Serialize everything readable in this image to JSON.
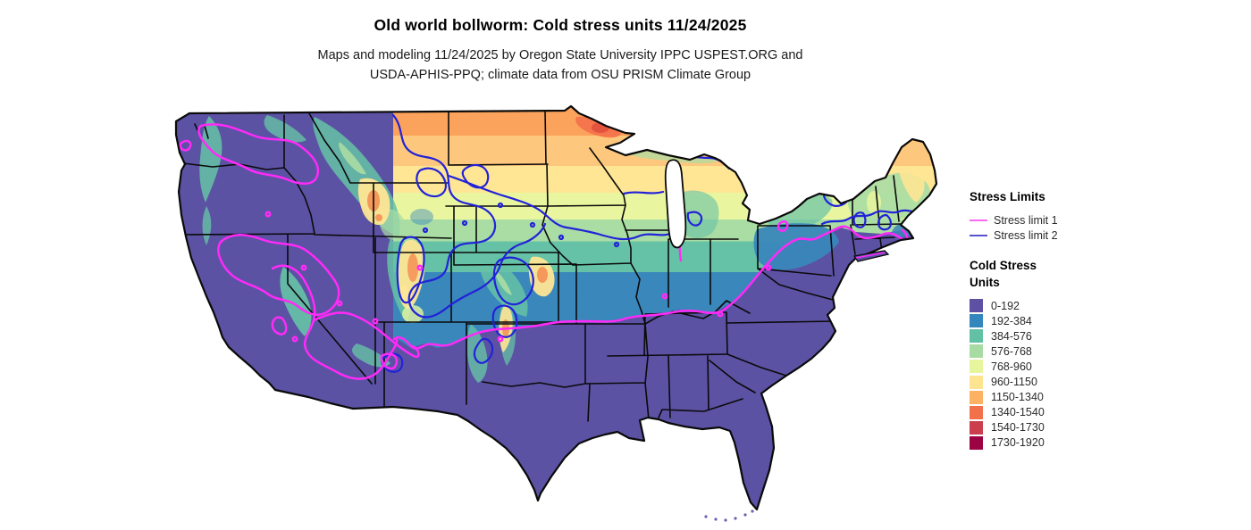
{
  "header": {
    "title": "Old world bollworm: Cold stress units 11/24/2025",
    "subtitle_line1": "Maps and modeling 11/24/2025 by Oregon State University IPPC USPEST.ORG and",
    "subtitle_line2": "USDA-APHIS-PPQ; climate data from OSU PRISM Climate Group"
  },
  "legend": {
    "stress_limits": {
      "heading": "Stress Limits",
      "items": [
        {
          "label": "Stress limit 1",
          "color": "#f969f2"
        },
        {
          "label": "Stress limit 2",
          "color": "#5752cd"
        }
      ]
    },
    "cold_stress": {
      "heading_line1": "Cold Stress",
      "heading_line2": "Units",
      "classes": [
        {
          "range": "0-192",
          "color": "#5e50a2"
        },
        {
          "range": "192-384",
          "color": "#3387bc"
        },
        {
          "range": "384-576",
          "color": "#62c0a5"
        },
        {
          "range": "576-768",
          "color": "#a8dba3"
        },
        {
          "range": "768-960",
          "color": "#e7f59c"
        },
        {
          "range": "960-1150",
          "color": "#fee491"
        },
        {
          "range": "1150-1340",
          "color": "#fdb163"
        },
        {
          "range": "1340-1540",
          "color": "#f2714b"
        },
        {
          "range": "1540-1730",
          "color": "#ca3e4e"
        },
        {
          "range": "1730-1920",
          "color": "#9c0342"
        }
      ]
    }
  },
  "map": {
    "contour_colors": {
      "stress_limit_1": "#ff2af8",
      "stress_limit_2": "#2222d8"
    }
  }
}
